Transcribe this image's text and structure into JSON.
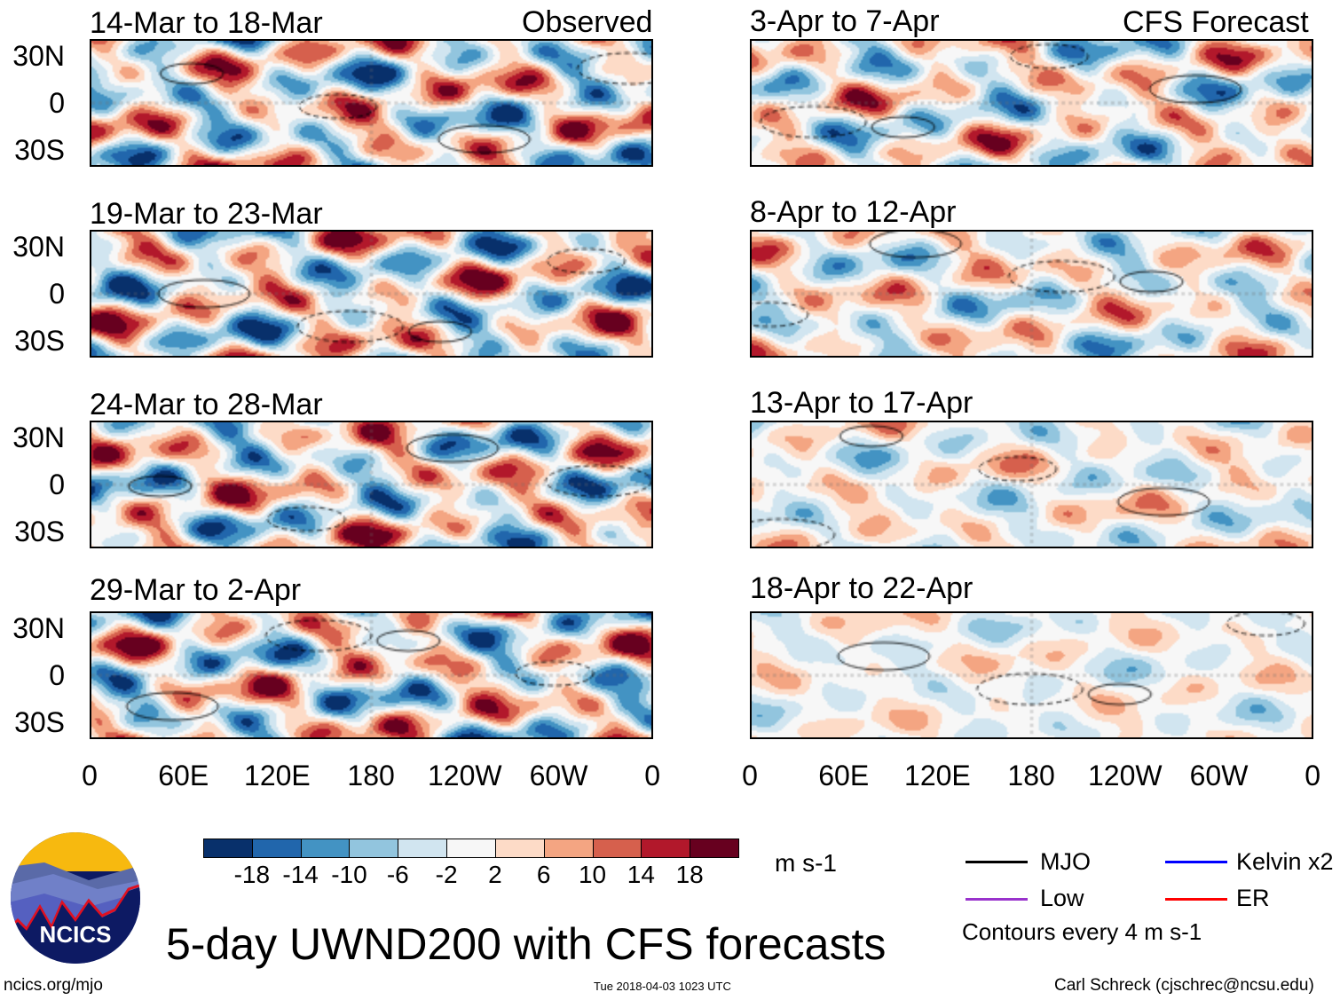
{
  "left_header": "Observed",
  "right_header": "CFS Forecast",
  "left_panels": [
    "14-Mar to 18-Mar",
    "19-Mar to 23-Mar",
    "24-Mar to 28-Mar",
    "29-Mar to 2-Apr"
  ],
  "right_panels": [
    "3-Apr to 7-Apr",
    "8-Apr to 12-Apr",
    "13-Apr to 17-Apr",
    "18-Apr to 22-Apr"
  ],
  "lat_labels": [
    "30N",
    "0",
    "30S"
  ],
  "lon_labels": [
    "0",
    "60E",
    "120E",
    "180",
    "120W",
    "60W",
    "0"
  ],
  "colorbar": {
    "colors": [
      "#08306b",
      "#2166ac",
      "#4393c3",
      "#92c5de",
      "#d1e5f0",
      "#f7f7f7",
      "#fddbc7",
      "#f4a582",
      "#d6604d",
      "#b2182b",
      "#67001f"
    ],
    "labels": [
      "-18",
      "-14",
      "-10",
      "-6",
      "-2",
      "2",
      "6",
      "10",
      "14",
      "18"
    ],
    "units": "m s-1"
  },
  "legend": {
    "items": [
      {
        "label": "MJO",
        "color": "#000000"
      },
      {
        "label": "Kelvin x2",
        "color": "#0000ff"
      },
      {
        "label": "Low",
        "color": "#9933cc"
      },
      {
        "label": "ER",
        "color": "#ff0000"
      }
    ],
    "contours": "Contours every 4 m s-1"
  },
  "logo_text": "NCICS",
  "title": "5-day UWND200 with CFS forecasts",
  "footer": {
    "left": "ncics.org/mjo",
    "center": "Tue 2018-04-03 1023 UTC",
    "right": "Carl Schreck (cjschrec@ncsu.edu)"
  }
}
